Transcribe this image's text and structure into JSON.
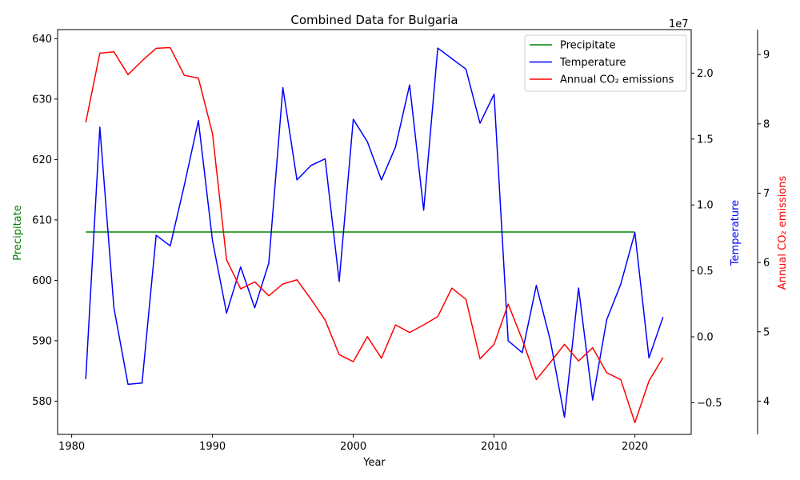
{
  "chart_data": {
    "type": "line",
    "title": "Combined Data for Bulgaria",
    "xlabel": "Year",
    "xlim": [
      1979,
      2024
    ],
    "x_ticks": [
      1980,
      1990,
      2000,
      2010,
      2020
    ],
    "axes": {
      "left": {
        "label": "Precipitate",
        "color": "#008000",
        "lim": [
          574.5,
          641.5
        ],
        "ticks": [
          580,
          590,
          600,
          610,
          620,
          630,
          640
        ]
      },
      "right": {
        "label": "Temperature",
        "color": "#0000ff",
        "lim": [
          -0.74,
          2.33
        ],
        "ticks": [
          -0.5,
          0.0,
          0.5,
          1.0,
          1.5,
          2.0
        ],
        "tick_labels": [
          "−0.5",
          "0.0",
          "0.5",
          "1.0",
          "1.5",
          "2.0"
        ],
        "offset_text": "1e7"
      },
      "far_right": {
        "label": "Annual CO₂ emissions",
        "color": "#ff0000",
        "lim": [
          3.52,
          9.36
        ],
        "ticks": [
          4,
          5,
          6,
          7,
          8,
          9
        ]
      }
    },
    "legend_position": "upper right",
    "series": [
      {
        "name": "Precipitate",
        "axis": "left",
        "color": "#008000",
        "x": [
          1981,
          2020
        ],
        "y": [
          608,
          608
        ]
      },
      {
        "name": "Temperature",
        "axis": "right",
        "color": "#0000ff",
        "x": [
          1981,
          1982,
          1983,
          1984,
          1985,
          1986,
          1987,
          1988,
          1989,
          1990,
          1991,
          1992,
          1993,
          1994,
          1995,
          1996,
          1997,
          1998,
          1999,
          2000,
          2001,
          2002,
          2003,
          2004,
          2005,
          2006,
          2007,
          2008,
          2009,
          2010,
          2011,
          2012,
          2013,
          2014,
          2015,
          2016,
          2017,
          2018,
          2019,
          2020,
          2021,
          2022
        ],
        "y": [
          -0.32,
          1.59,
          0.22,
          -0.36,
          -0.35,
          0.77,
          0.69,
          1.15,
          1.64,
          0.73,
          0.18,
          0.53,
          0.22,
          0.56,
          1.89,
          1.19,
          1.3,
          1.35,
          0.42,
          1.65,
          1.48,
          1.19,
          1.44,
          1.91,
          0.96,
          2.19,
          2.11,
          2.03,
          1.62,
          1.84,
          -0.03,
          -0.12,
          0.39,
          -0.03,
          -0.61,
          0.37,
          -0.48,
          0.13,
          0.4,
          0.79,
          -0.16,
          0.15
        ]
      },
      {
        "name": "Annual CO₂ emissions",
        "axis": "far_right",
        "color": "#ff0000",
        "x": [
          1981,
          1982,
          1983,
          1984,
          1985,
          1986,
          1987,
          1988,
          1989,
          1990,
          1991,
          1992,
          1993,
          1994,
          1995,
          1996,
          1997,
          1998,
          1999,
          2000,
          2001,
          2002,
          2003,
          2004,
          2005,
          2006,
          2007,
          2008,
          2009,
          2010,
          2011,
          2012,
          2013,
          2014,
          2015,
          2016,
          2017,
          2018,
          2019,
          2020,
          2021,
          2022
        ],
        "y": [
          8.02,
          9.02,
          9.04,
          8.71,
          8.91,
          9.09,
          9.1,
          8.7,
          8.66,
          7.86,
          6.04,
          5.62,
          5.72,
          5.52,
          5.69,
          5.75,
          5.47,
          5.17,
          4.67,
          4.57,
          4.93,
          4.62,
          5.1,
          4.99,
          5.1,
          5.22,
          5.63,
          5.47,
          4.61,
          4.82,
          5.4,
          4.89,
          4.31,
          4.56,
          4.82,
          4.58,
          4.77,
          4.41,
          4.31,
          3.69,
          4.29,
          4.63
        ]
      }
    ]
  }
}
